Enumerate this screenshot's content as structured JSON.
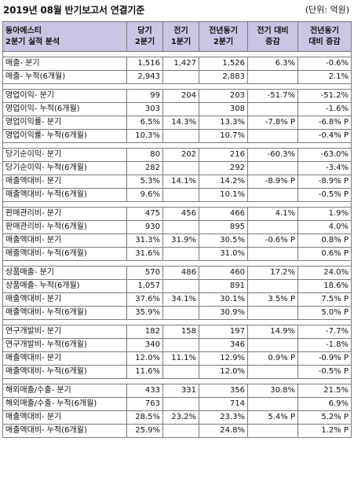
{
  "title": "2019년 08월 반기보고서 연결기준",
  "unit": "(단위: 억원)",
  "header": {
    "company": "동아에스티",
    "subtitle": "2분기 실적 분석",
    "cols": [
      "당기\n2분기",
      "전기\n1분기",
      "전년동기\n2분기",
      "전기 대비\n증감",
      "전년동기\n대비 증감"
    ]
  },
  "groups": [
    {
      "rows": [
        [
          "매출- 분기",
          "1,516",
          "1,427",
          "1,526",
          "6.3%",
          "-0.6%"
        ],
        [
          "매출- 누적(6개월)",
          "2,943",
          "",
          "2,883",
          "",
          "2.1%"
        ]
      ]
    },
    {
      "rows": [
        [
          "영업이익- 분기",
          "99",
          "204",
          "203",
          "-51.7%",
          "-51.2%"
        ],
        [
          "영업이익- 누적(6개월)",
          "303",
          "",
          "308",
          "",
          "-1.6%"
        ],
        [
          "영업이익률- 분기",
          "6.5%",
          "14.3%",
          "13.3%",
          "-7.8% P",
          "-6.8% P"
        ],
        [
          "영업이익률- 누적(6개월)",
          "10.3%",
          "",
          "10.7%",
          "",
          "-0.4% P"
        ]
      ]
    },
    {
      "rows": [
        [
          "당기순이익- 분기",
          "80",
          "202",
          "216",
          "-60.3%",
          "-63.0%"
        ],
        [
          "당기순이익- 누적(6개월)",
          "282",
          "",
          "292",
          "",
          "-3.4%"
        ],
        [
          "매출액대비- 분기",
          "5.3%",
          "14.1%",
          "14.2%",
          "-8.9% P",
          "-8.9% P"
        ],
        [
          "매출액대비- 누적(6개월)",
          "9.6%",
          "",
          "10.1%",
          "",
          "-0.5% P"
        ]
      ]
    },
    {
      "rows": [
        [
          "판매관리비- 분기",
          "475",
          "456",
          "466",
          "4.1%",
          "1.9%"
        ],
        [
          "판매관리비- 누적(6개월)",
          "930",
          "",
          "895",
          "",
          "4.0%"
        ],
        [
          "매출액대비- 분기",
          "31.3%",
          "31.9%",
          "30.5%",
          "-0.6% P",
          "0.8% P"
        ],
        [
          "매출액대비- 누적(6개월)",
          "31.6%",
          "",
          "31.0%",
          "",
          "0.6% P"
        ]
      ]
    },
    {
      "rows": [
        [
          "상품매출- 분기",
          "570",
          "486",
          "460",
          "17.2%",
          "24.0%"
        ],
        [
          "상품매출- 누적(6개월)",
          "1,057",
          "",
          "891",
          "",
          "18.6%"
        ],
        [
          "매출액대비- 분기",
          "37.6%",
          "34.1%",
          "30.1%",
          "3.5% P",
          "7.5% P"
        ],
        [
          "매출액대비- 누적(6개월)",
          "35.9%",
          "",
          "30.9%",
          "",
          "5.0% P"
        ]
      ]
    },
    {
      "rows": [
        [
          "연구개발비- 분기",
          "182",
          "158",
          "197",
          "14.9%",
          "-7.7%"
        ],
        [
          "연구개발비- 누적(6개월)",
          "340",
          "",
          "346",
          "",
          "-1.8%"
        ],
        [
          "매출액대비- 분기",
          "12.0%",
          "11.1%",
          "12.9%",
          "0.9% P",
          "-0.9% P"
        ],
        [
          "매출액대비- 누적(6개월)",
          "11.6%",
          "",
          "12.0%",
          "",
          "-0.5% P"
        ]
      ]
    },
    {
      "rows": [
        [
          "해외매출/수출- 분기",
          "433",
          "331",
          "356",
          "30.8%",
          "21.5%"
        ],
        [
          "해외매출/수출- 누적(6개월)",
          "763",
          "",
          "714",
          "",
          "6.9%"
        ],
        [
          "매출액대비- 분기",
          "28.5%",
          "23.2%",
          "23.3%",
          "5.4% P",
          "5.2% P"
        ],
        [
          "매출액대비- 누적(6개월)",
          "25.9%",
          "",
          "24.8%",
          "",
          "1.2% P"
        ]
      ]
    }
  ]
}
